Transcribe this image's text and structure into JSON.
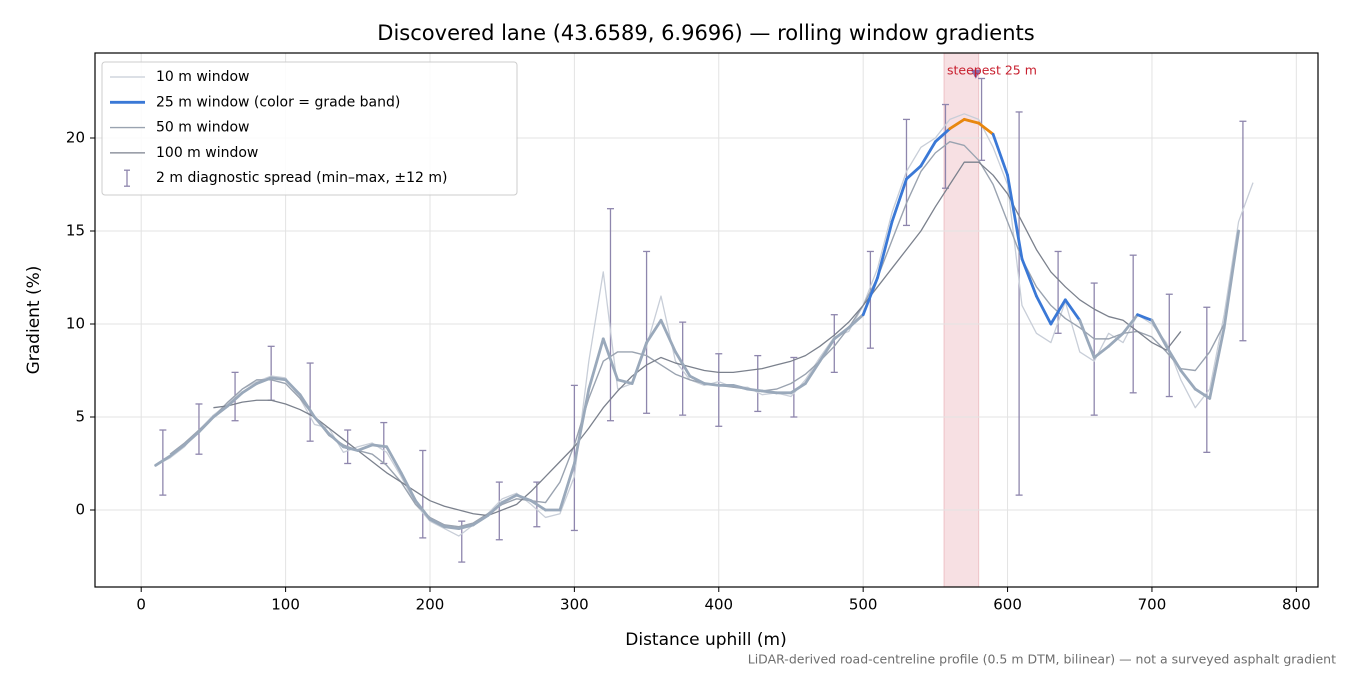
{
  "chart_data": {
    "type": "line",
    "title": "Discovered lane (43.6589, 6.9696) — rolling window gradients",
    "x_label": "Distance uphill (m)",
    "y_label": "Gradient (%)",
    "note": "LiDAR-derived road-centreline profile (0.5 m DTM, bilinear) — not a surveyed asphalt gradient",
    "xlim": [
      -32,
      815
    ],
    "ylim": [
      -4.14,
      24.57
    ],
    "xticks": [
      0,
      100,
      200,
      300,
      400,
      500,
      600,
      700,
      800
    ],
    "yticks": [
      0,
      5,
      10,
      15,
      20
    ],
    "grid": true,
    "legend": "upper left",
    "x": [
      0,
      10,
      20,
      30,
      40,
      50,
      60,
      70,
      80,
      90,
      100,
      110,
      120,
      130,
      140,
      150,
      160,
      170,
      180,
      190,
      200,
      210,
      220,
      230,
      240,
      250,
      260,
      270,
      280,
      290,
      300,
      310,
      320,
      330,
      340,
      350,
      360,
      370,
      380,
      390,
      400,
      410,
      420,
      430,
      440,
      450,
      460,
      470,
      480,
      490,
      500,
      510,
      520,
      530,
      540,
      550,
      560,
      570,
      580,
      590,
      600,
      610,
      620,
      630,
      640,
      650,
      660,
      670,
      680,
      690,
      700,
      710,
      720,
      730,
      740,
      750,
      760,
      770
    ],
    "series": [
      {
        "name": "10 m window",
        "color": "#c8ced8",
        "width": 1.3,
        "values": [
          null,
          2.4,
          2.8,
          3.4,
          4.3,
          5.1,
          5.7,
          6.5,
          6.9,
          7.2,
          7.1,
          6.0,
          4.6,
          4.4,
          3.1,
          3.4,
          3.6,
          3.1,
          1.8,
          0.3,
          -0.6,
          -1.0,
          -1.4,
          -0.8,
          -0.2,
          0.6,
          0.9,
          0.3,
          -0.4,
          -0.2,
          1.8,
          8.0,
          12.8,
          6.5,
          6.8,
          8.8,
          11.5,
          8.0,
          7.0,
          6.7,
          6.9,
          6.6,
          6.6,
          6.2,
          6.3,
          6.1,
          7.0,
          8.2,
          9.3,
          9.6,
          11.0,
          13.0,
          16.0,
          18.2,
          19.5,
          20.0,
          21.0,
          21.3,
          21.0,
          19.5,
          17.5,
          11.0,
          9.5,
          9.0,
          11.2,
          8.5,
          8.0,
          9.5,
          9.0,
          10.5,
          10.0,
          9.0,
          7.0,
          5.5,
          6.5,
          10.5,
          15.5,
          17.6
        ]
      },
      {
        "name": "25 m window (color = grade band)",
        "color": "#3a78d6",
        "width": 2.8,
        "base_color": "#9aa9bb",
        "grade_bands": [
          {
            "min": 10,
            "color": "#3a78d6"
          },
          {
            "min": 20,
            "color": "#e8870e"
          }
        ],
        "values": [
          null,
          2.4,
          2.9,
          3.5,
          4.2,
          5.0,
          5.6,
          6.3,
          6.8,
          7.1,
          7.0,
          6.2,
          5.0,
          4.1,
          3.4,
          3.2,
          3.5,
          3.4,
          2.0,
          0.5,
          -0.5,
          -0.9,
          -1.0,
          -0.8,
          -0.3,
          0.4,
          0.8,
          0.5,
          0.0,
          0.0,
          2.5,
          6.5,
          9.2,
          7.0,
          6.8,
          9.0,
          10.2,
          8.5,
          7.2,
          6.8,
          6.7,
          6.7,
          6.5,
          6.4,
          6.3,
          6.3,
          6.8,
          8.0,
          9.2,
          9.8,
          10.5,
          12.5,
          15.5,
          17.8,
          18.5,
          19.8,
          20.5,
          21.0,
          20.8,
          20.2,
          18.0,
          13.5,
          11.5,
          10.0,
          11.3,
          10.2,
          8.2,
          8.8,
          9.5,
          10.5,
          10.2,
          8.8,
          7.5,
          6.5,
          6.0,
          9.8,
          15.0,
          null
        ]
      },
      {
        "name": "50 m window",
        "color": "#9aa3b0",
        "width": 1.4,
        "values": [
          null,
          null,
          3.0,
          3.6,
          4.3,
          5.0,
          5.8,
          6.5,
          7.0,
          7.0,
          6.8,
          6.0,
          5.0,
          4.0,
          3.5,
          3.2,
          3.0,
          2.4,
          1.5,
          0.3,
          -0.4,
          -0.8,
          -0.9,
          -0.7,
          -0.2,
          0.3,
          0.6,
          0.5,
          0.4,
          1.5,
          3.5,
          6.0,
          8.0,
          8.5,
          8.5,
          8.3,
          7.8,
          7.3,
          7.0,
          6.8,
          6.7,
          6.6,
          6.5,
          6.4,
          6.5,
          6.8,
          7.3,
          8.0,
          8.8,
          9.8,
          11.0,
          12.5,
          14.5,
          16.5,
          18.2,
          19.2,
          19.8,
          19.6,
          18.8,
          17.5,
          15.5,
          13.5,
          12.0,
          11.0,
          10.3,
          9.8,
          9.2,
          9.2,
          9.5,
          9.6,
          9.3,
          8.5,
          7.6,
          7.5,
          8.5,
          10.0,
          null,
          null
        ]
      },
      {
        "name": "100 m window",
        "color": "#7b818d",
        "width": 1.3,
        "values": [
          null,
          null,
          null,
          null,
          null,
          5.5,
          5.6,
          5.8,
          5.9,
          5.9,
          5.7,
          5.4,
          5.0,
          4.4,
          3.8,
          3.2,
          2.6,
          2.0,
          1.5,
          1.0,
          0.5,
          0.2,
          0.0,
          -0.2,
          -0.3,
          0.0,
          0.3,
          1.0,
          1.8,
          2.6,
          3.4,
          4.4,
          5.5,
          6.4,
          7.2,
          7.8,
          8.2,
          7.9,
          7.7,
          7.5,
          7.4,
          7.4,
          7.5,
          7.6,
          7.8,
          8.0,
          8.3,
          8.8,
          9.4,
          10.1,
          11.0,
          12.0,
          13.0,
          14.0,
          15.0,
          16.3,
          17.5,
          18.7,
          18.7,
          18.0,
          17.0,
          15.5,
          14.0,
          12.8,
          12.0,
          11.3,
          10.8,
          10.4,
          10.2,
          9.6,
          9.0,
          8.6,
          9.6,
          null,
          null,
          null,
          null,
          null
        ]
      }
    ],
    "error_bars": {
      "name": "2 m diagnostic spread (min–max, ±12 m)",
      "color": "#8e86ad",
      "x": [
        15,
        40,
        65,
        90,
        117,
        143,
        168,
        195,
        222,
        248,
        274,
        300,
        325,
        350,
        375,
        400,
        427,
        452,
        480,
        505,
        530,
        557,
        582,
        608,
        635,
        660,
        687,
        712,
        738,
        763
      ],
      "low": [
        0.8,
        3.0,
        4.8,
        5.9,
        3.7,
        2.5,
        2.5,
        -1.5,
        -2.8,
        -1.6,
        -0.9,
        -1.1,
        4.8,
        5.2,
        5.1,
        4.5,
        5.3,
        5.0,
        7.4,
        8.7,
        15.3,
        17.3,
        18.8,
        0.8,
        9.5,
        5.1,
        6.3,
        6.1,
        3.1,
        9.1
      ],
      "high": [
        4.3,
        5.7,
        7.4,
        8.8,
        7.9,
        4.3,
        4.7,
        3.2,
        -0.6,
        1.5,
        1.5,
        6.7,
        16.2,
        13.9,
        10.1,
        8.4,
        8.3,
        8.2,
        10.5,
        13.9,
        21.0,
        21.8,
        23.2,
        21.4,
        13.9,
        12.2,
        13.7,
        11.6,
        10.9,
        20.9
      ]
    },
    "highlight": {
      "x": [
        556,
        580
      ],
      "color": "#e8a6ae",
      "label": "steepest 25 m",
      "label_color": "#c8202f",
      "marker": [
        578,
        23.4
      ],
      "marker_color": "#8e6aa8"
    }
  }
}
